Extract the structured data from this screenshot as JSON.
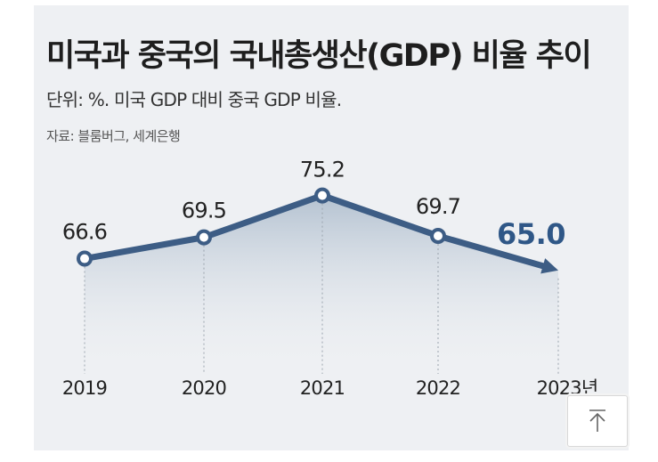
{
  "header": {
    "title": "미국과 중국의 국내총생산(GDP) 비율 추이",
    "subtitle": "단위: %. 미국 GDP 대비 중국 GDP 비율.",
    "source": "자료: 블룸버그, 세계은행"
  },
  "chart_data": {
    "type": "line",
    "title": "미국과 중국의 국내총생산(GDP) 비율 추이",
    "xlabel": "",
    "ylabel": "",
    "unit": "%",
    "categories": [
      "2019",
      "2020",
      "2021",
      "2022",
      "2023년"
    ],
    "values": [
      66.6,
      69.5,
      75.2,
      69.7,
      65.0
    ],
    "value_labels": [
      "66.6",
      "69.5",
      "75.2",
      "69.7",
      "65.0"
    ],
    "highlight_last": true,
    "ylim": [
      50,
      80
    ],
    "grid": false,
    "colors": {
      "line": "#3d5d85",
      "marker_fill": "#ffffff",
      "highlight_label": "#2f5787",
      "label": "#222222",
      "fill_top": "#b4c2d1",
      "fill_bottom": "#eef0f3",
      "guide": "#9aa3ad"
    }
  },
  "ui": {
    "scroll_top_icon": "arrow-up-icon"
  }
}
